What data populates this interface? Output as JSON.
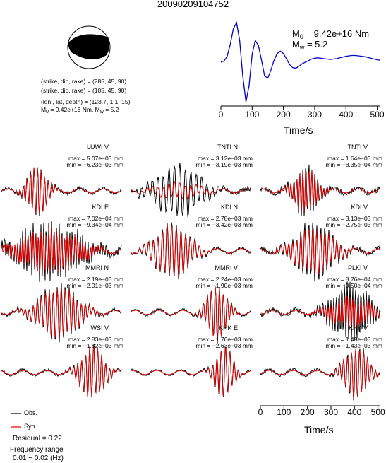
{
  "title": "20090209104752",
  "mechanism": {
    "line1": "(strike, dip, rake) = (285, 45, 90)",
    "line2": "(strike, dip, rake) = (105, 45, 90)",
    "line3": "(lon., lat, depth) = (123.7, 1.1, 15)",
    "m0_label": "M",
    "m0_sub": "0",
    "m0_value": " = 9.42e+16 Nm, M",
    "mw_sub": "w",
    "mw_value": " = 5.2"
  },
  "stf": {
    "m0_label": "M",
    "m0_sub": "0",
    "m0_value": " = 9.42e+16 Nm",
    "mw_label": "M",
    "mw_sub": "w",
    "mw_value": " = 5.2",
    "xlabel": "Time/s",
    "xticks": [
      "0",
      "100",
      "200",
      "300",
      "400",
      "500"
    ],
    "line_color": "#0000cc"
  },
  "bottom_axis": {
    "xlabel": "Time/s",
    "xticks": [
      "0",
      "100",
      "200",
      "300",
      "400",
      "500"
    ]
  },
  "legend": {
    "obs_label": "Obs.",
    "syn_label": "Syn.",
    "obs_color": "#000000",
    "syn_color": "#e00000"
  },
  "footer": {
    "residual": "Residual = 0.22",
    "freq_title": "Frequency range",
    "freq_value": "0.01 − 0.02 (Hz)"
  },
  "panels": [
    {
      "name": "LUWI V",
      "max": "max = 5.07e−03 mm",
      "min": "min = −6.23e−03 mm"
    },
    {
      "name": "TNTI N",
      "max": "max = 3.12e−03 mm",
      "min": "min = −3.19e−03 mm"
    },
    {
      "name": "TNTI V",
      "max": "max = 1.64e−03 mm",
      "min": "min = −8.35e−04 mm"
    },
    {
      "name": "KDI E",
      "max": "max = 7.02e−04 mm",
      "min": "min = −9.34e−04 mm"
    },
    {
      "name": "KDI N",
      "max": "max = 2.78e−03 mm",
      "min": "min = −3.42e−03 mm"
    },
    {
      "name": "KDI V",
      "max": "max = 3.13e−03 mm",
      "min": "min = −2.75e−03 mm"
    },
    {
      "name": "MMRI N",
      "max": "max = 2.19e−03 mm",
      "min": "min = −2.01e−03 mm"
    },
    {
      "name": "MMRI V",
      "max": "max = 2.24e−03 mm",
      "min": "min = −1.90e−03 mm"
    },
    {
      "name": "PLKI V",
      "max": "max = 8.76e−04 mm",
      "min": "min = −9.50e−04 mm"
    },
    {
      "name": "WSI V",
      "max": "max = 2.83e−03 mm",
      "min": "min = −1.82e−03 mm"
    },
    {
      "name": "KHK E",
      "max": "max = 1.76e−03 mm",
      "min": "min = −2.63e−03 mm"
    },
    {
      "name": "KHK V",
      "max": "max = 1.49e−03 mm",
      "min": "min = −1.43e−03 mm"
    }
  ],
  "chart_data": [
    {
      "type": "line",
      "name": "source time function",
      "xlabel": "Time/s",
      "xlim": [
        0,
        510
      ],
      "x": [
        0,
        10,
        20,
        30,
        40,
        50,
        60,
        70,
        80,
        90,
        100,
        110,
        120,
        130,
        140,
        150,
        160,
        170,
        180,
        190,
        200,
        210,
        220,
        230,
        240,
        250,
        260,
        270,
        280,
        290,
        300,
        310,
        320,
        330,
        340,
        350,
        360,
        370,
        380,
        390,
        400,
        410,
        420,
        430,
        440,
        450,
        460,
        470,
        480,
        490,
        500,
        510
      ],
      "y": [
        0.0,
        0.03,
        0.15,
        0.45,
        0.85,
        1.0,
        0.55,
        -0.35,
        -1.0,
        -0.6,
        0.2,
        0.55,
        0.42,
        0.05,
        -0.35,
        -0.4,
        -0.2,
        0.05,
        0.22,
        0.28,
        0.22,
        0.08,
        -0.06,
        -0.14,
        -0.15,
        -0.1,
        -0.04,
        0.0,
        0.04,
        0.08,
        0.1,
        0.11,
        0.1,
        0.09,
        0.08,
        0.07,
        0.08,
        0.09,
        0.11,
        0.13,
        0.15,
        0.16,
        0.17,
        0.17,
        0.16,
        0.15,
        0.14,
        0.12,
        0.1,
        0.08,
        0.06,
        0.05
      ]
    },
    {
      "type": "line",
      "name": "waveform comparison",
      "xlabel": "Time/s",
      "xlim": [
        0,
        510
      ],
      "series": [
        {
          "name": "Obs."
        },
        {
          "name": "Syn."
        }
      ]
    }
  ]
}
